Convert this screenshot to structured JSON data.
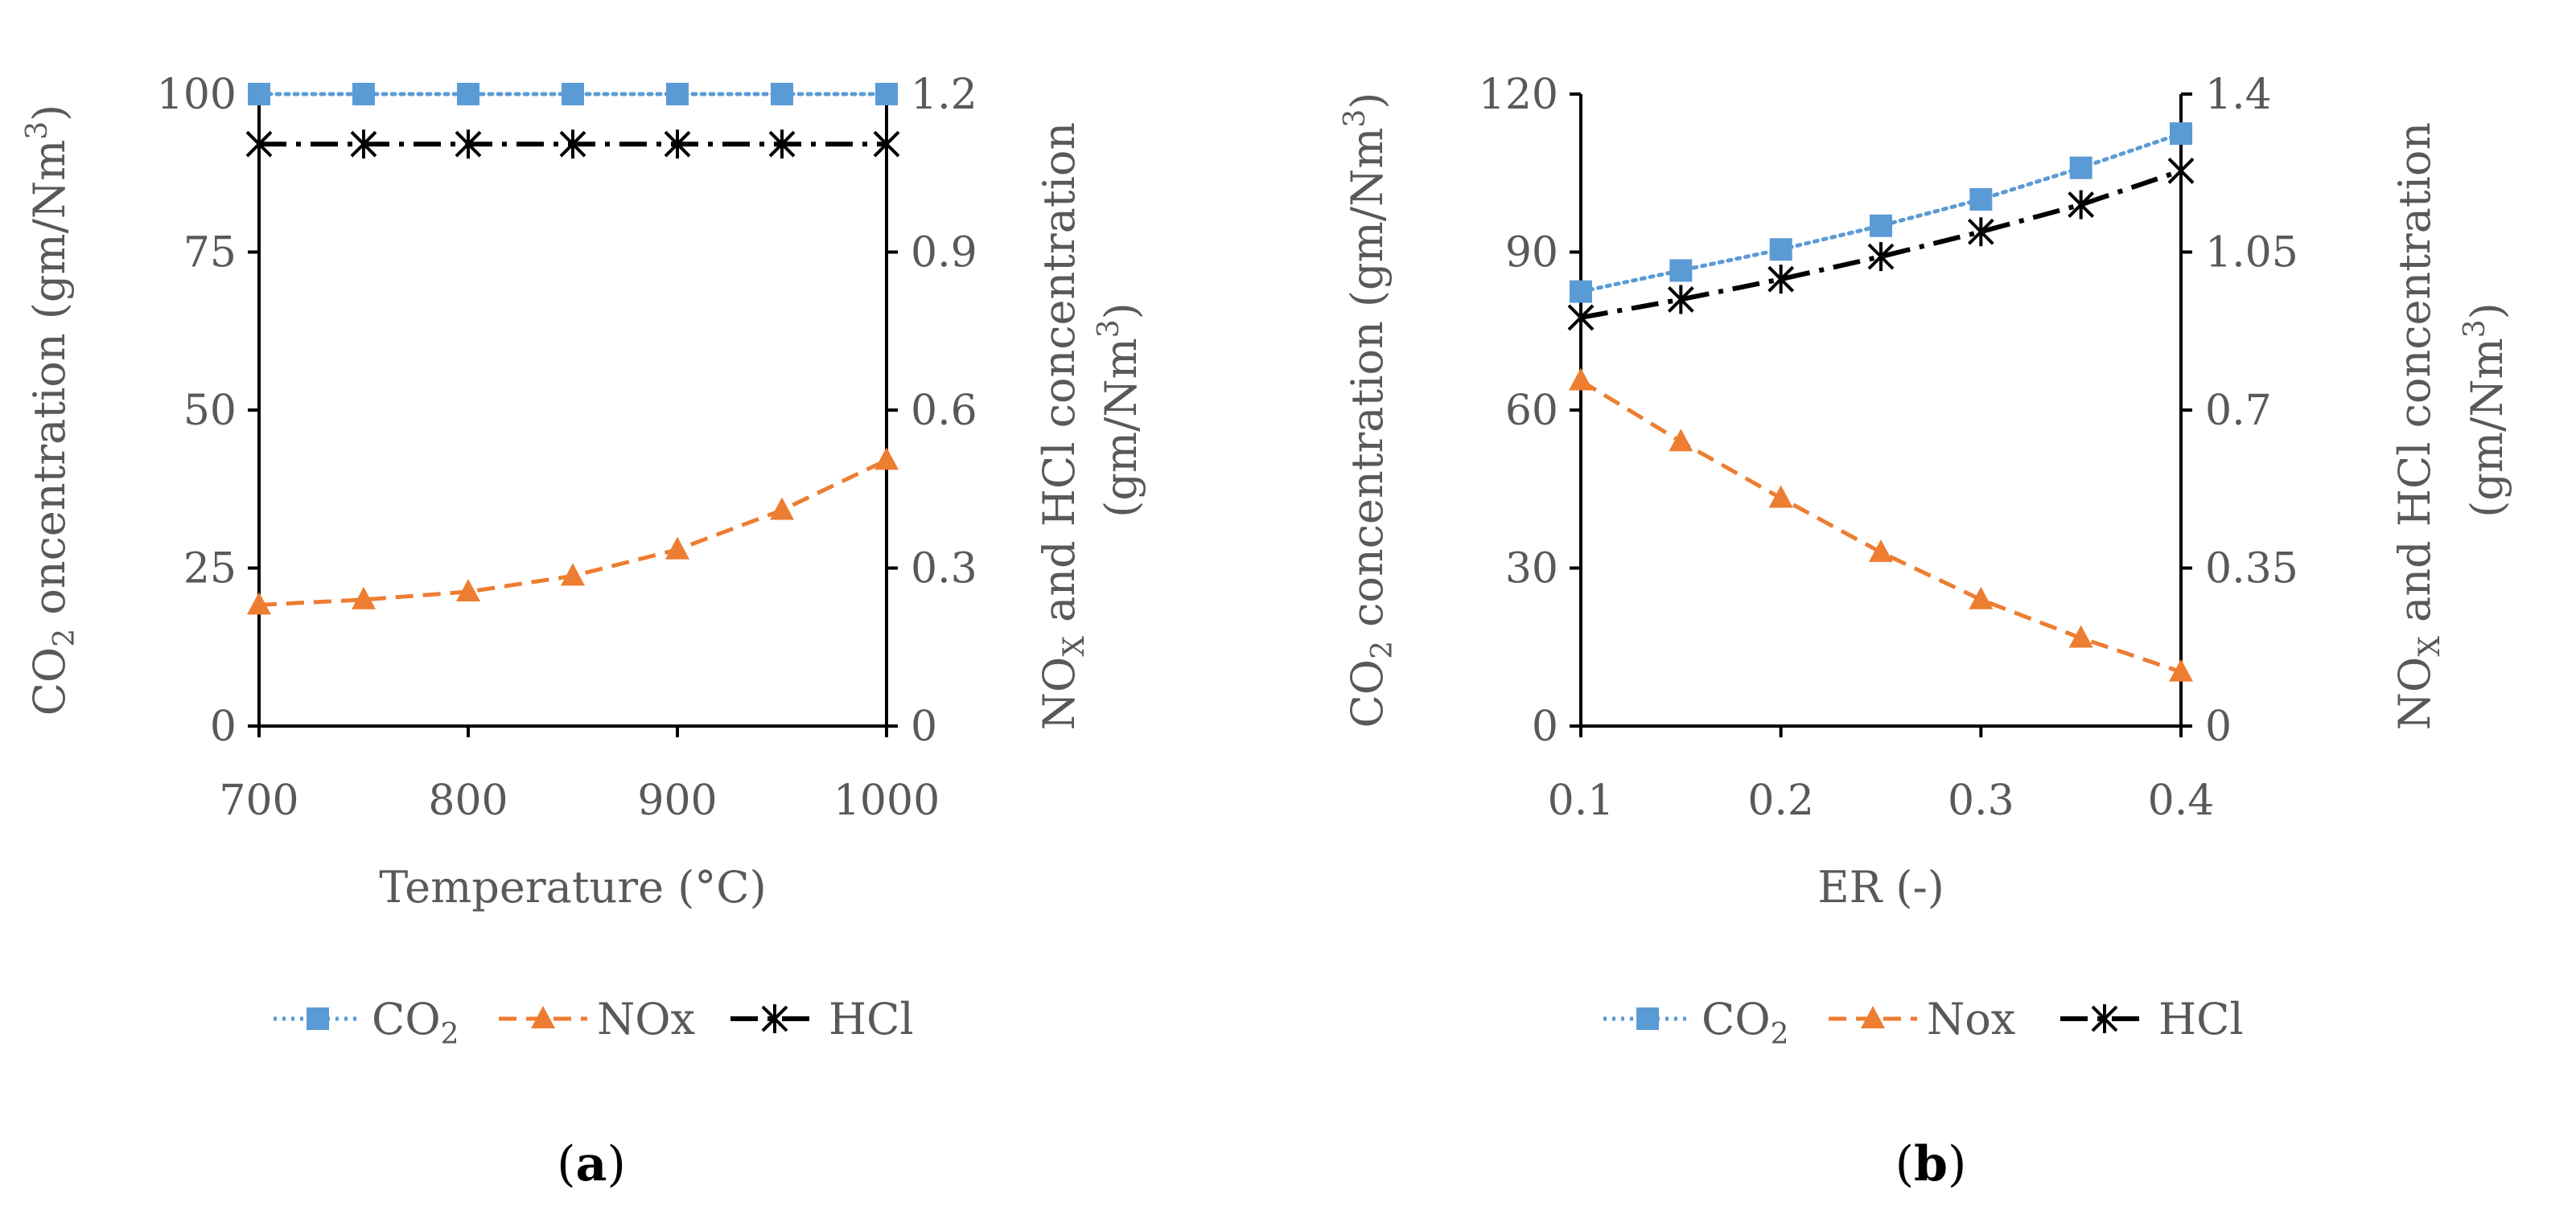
{
  "chart_data": [
    {
      "type": "line",
      "panel_label": "a",
      "xlabel": "Temperature (°C)",
      "ylabel_left": {
        "main": "CO",
        "sub": "2",
        "rest": " oncentration (gm/Nm",
        "sup": "3",
        "close": ")"
      },
      "ylabel_right": {
        "line1_main": "NO",
        "line1_sub": "X",
        "line1_rest": " and HCl concentration",
        "line2_main": "(gm/Nm",
        "line2_sup": "3",
        "line2_close": ")"
      },
      "x": [
        700,
        750,
        800,
        850,
        900,
        950,
        1000
      ],
      "x_ticks": [
        "700",
        "800",
        "900",
        "1000"
      ],
      "x_tick_values": [
        700,
        800,
        900,
        1000
      ],
      "xlim": [
        700,
        1000
      ],
      "y_left_ticks": [
        "0",
        "25",
        "50",
        "75",
        "100"
      ],
      "y_left_tick_values": [
        0,
        25,
        50,
        75,
        100
      ],
      "ylim_left": [
        0,
        100
      ],
      "y_right_ticks": [
        "0",
        "0.3",
        "0.6",
        "0.9",
        "1.2"
      ],
      "y_right_tick_values": [
        0,
        0.3,
        0.6,
        0.9,
        1.2
      ],
      "ylim_right": [
        0,
        1.2
      ],
      "series": [
        {
          "name": "CO2",
          "legend_main": "CO",
          "legend_sub": "2",
          "axis": "left",
          "color": "#5B9BD5",
          "style": "dotted",
          "marker": "square",
          "values": [
            100,
            100,
            100,
            100,
            100,
            100,
            100
          ]
        },
        {
          "name": "NOx",
          "legend_main": "NOx",
          "legend_sub": "",
          "axis": "right",
          "color": "#ED7D31",
          "style": "dashed",
          "marker": "triangle",
          "values": [
            0.23,
            0.24,
            0.255,
            0.285,
            0.335,
            0.41,
            0.505
          ]
        },
        {
          "name": "HCl",
          "legend_main": "HCl",
          "legend_sub": "",
          "axis": "right",
          "color": "#000000",
          "style": "dashdot",
          "marker": "asterisk",
          "values": [
            1.105,
            1.105,
            1.105,
            1.105,
            1.105,
            1.105,
            1.105
          ]
        }
      ]
    },
    {
      "type": "line",
      "panel_label": "b",
      "xlabel": "ER (-)",
      "ylabel_left": {
        "main": "CO",
        "sub": "2",
        "rest": " concentration (gm/Nm",
        "sup": "3",
        "close": ")"
      },
      "ylabel_right": {
        "line1_main": "NO",
        "line1_sub": "X",
        "line1_rest": " and HCl concentration",
        "line2_main": "(gm/Nm",
        "line2_sup": "3",
        "line2_close": ")"
      },
      "x": [
        0.1,
        0.15,
        0.2,
        0.25,
        0.3,
        0.35,
        0.4
      ],
      "x_ticks": [
        "0.1",
        "0.2",
        "0.3",
        "0.4"
      ],
      "x_tick_values": [
        0.1,
        0.2,
        0.3,
        0.4
      ],
      "xlim": [
        0.1,
        0.4
      ],
      "y_left_ticks": [
        "0",
        "30",
        "60",
        "90",
        "120"
      ],
      "y_left_tick_values": [
        0,
        30,
        60,
        90,
        120
      ],
      "ylim_left": [
        0,
        120
      ],
      "y_right_ticks": [
        "0",
        "0.35",
        "0.7",
        "1.05",
        "1.4"
      ],
      "y_right_tick_values": [
        0,
        0.35,
        0.7,
        1.05,
        1.4
      ],
      "ylim_right": [
        0,
        1.4
      ],
      "series": [
        {
          "name": "CO2",
          "legend_main": "CO",
          "legend_sub": "2",
          "axis": "left",
          "color": "#5B9BD5",
          "style": "dotted",
          "marker": "square",
          "values": [
            82.5,
            86.5,
            90.5,
            95,
            100,
            106,
            112.5
          ]
        },
        {
          "name": "Nox",
          "legend_main": "Nox",
          "legend_sub": "",
          "axis": "right",
          "color": "#ED7D31",
          "style": "dashed",
          "marker": "triangle",
          "values": [
            0.765,
            0.63,
            0.505,
            0.385,
            0.28,
            0.195,
            0.12
          ]
        },
        {
          "name": "HCl",
          "legend_main": "HCl",
          "legend_sub": "",
          "axis": "right",
          "color": "#000000",
          "style": "dashdot",
          "marker": "asterisk",
          "values": [
            0.905,
            0.945,
            0.99,
            1.04,
            1.095,
            1.155,
            1.23
          ]
        }
      ]
    }
  ]
}
